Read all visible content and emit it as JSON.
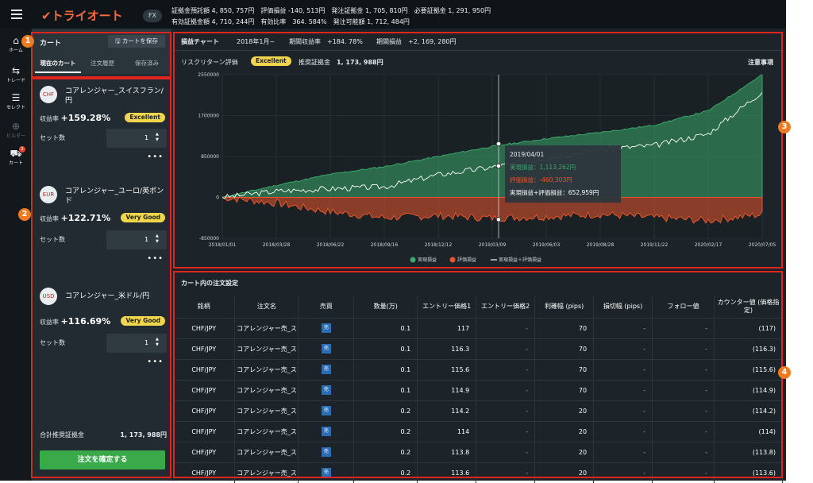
{
  "header": {
    "logo": "トライオート",
    "fx": "FX",
    "line1": "証拠金預託額 4, 850, 757円　評価損益 -140, 513円　発注証拠金 1, 705, 810円　必要証拠金 1, 291, 950円",
    "line2": "有効証拠金額 4, 710, 244円　有効比率　364. 584%　発注可能額 1, 712, 484円"
  },
  "nav": [
    {
      "label": "ホーム",
      "icon": "⌂"
    },
    {
      "label": "トレード",
      "icon": "⇆"
    },
    {
      "label": "セレクト",
      "icon": "☰"
    },
    {
      "label": "ビルダー",
      "icon": "⊕"
    },
    {
      "label": "カート",
      "icon": "⛟",
      "badge": "3"
    }
  ],
  "cart": {
    "title": "カート",
    "save": "カートを保存",
    "tabs": [
      "現在のカート",
      "注文履歴",
      "保存済み"
    ],
    "items": [
      {
        "flag": "CHF",
        "name": "コアレンジャー_スイスフラン/円",
        "yield_label": "収益率",
        "yield": "+159.28%",
        "rating": "Excellent",
        "set_label": "セット数",
        "sets": "1"
      },
      {
        "flag": "EUR",
        "name": "コアレンジャー_ユーロ/英ポンド",
        "yield_label": "収益率",
        "yield": "+122.71%",
        "rating": "Very Good",
        "set_label": "セット数",
        "sets": "1"
      },
      {
        "flag": "USD",
        "name": "コアレンジャー_米ドル/円",
        "yield_label": "収益率",
        "yield": "+116.69%",
        "rating": "Very Good",
        "set_label": "セット数",
        "sets": "1"
      }
    ],
    "total_label": "合計推奨証拠金",
    "total_value": "1, 173, 988円",
    "confirm": "注文を確定する"
  },
  "chartpanel": {
    "tab": "損益チャート",
    "period": "2018年1月~",
    "return_label": "期間収益率",
    "return": "+184. 78%",
    "pl_label": "期間損益",
    "pl": "+2, 169, 280円",
    "risk_label": "リスクリターン評価",
    "risk": "Excellent",
    "margin_label": "推奨証拠金",
    "margin": "1, 173, 988円",
    "notice": "注意事項",
    "tooltip": {
      "date": "2019/04/01",
      "realized": "実現損益：1,113,262円",
      "unrealized": "評価損益：-460,303円",
      "total": "実現損益+評価損益：652,959円"
    }
  },
  "chart_data": {
    "type": "area",
    "x": [
      "2018/01/01",
      "2018/03/28",
      "2018/06/22",
      "2018/09/16",
      "2018/12/12",
      "2019/03/09",
      "2019/06/03",
      "2019/08/28",
      "2019/11/22",
      "2020/02/17",
      "2020/07/05"
    ],
    "ylim": [
      -850000,
      2550000
    ],
    "yticks": [
      2550000,
      1700000,
      850000,
      0,
      -850000
    ],
    "series": [
      {
        "name": "実現損益",
        "color": "#3aa86a",
        "values": [
          0,
          250000,
          480000,
          640000,
          850000,
          1060000,
          1220000,
          1350000,
          1500000,
          1800000,
          2550000
        ]
      },
      {
        "name": "評価損益",
        "color": "#e8552c",
        "values": [
          0,
          -120000,
          -300000,
          -420000,
          -380000,
          -430000,
          -400000,
          -350000,
          -420000,
          -480000,
          -350000
        ]
      },
      {
        "name": "実現損益＋評価損益",
        "color": "#ffffff",
        "values": [
          0,
          130000,
          180000,
          220000,
          470000,
          630000,
          820000,
          1000000,
          1080000,
          1320000,
          2200000
        ]
      }
    ],
    "marker_x": "2019/04/01"
  },
  "orders": {
    "title": "カート内の注文設定",
    "headers": [
      "銘柄",
      "注文名",
      "売買",
      "数量(万)",
      "エントリー価格1",
      "エントリー価格2",
      "利確幅 (pips)",
      "損切幅 (pips)",
      "フォロー値",
      "カウンター値 (価格指定)"
    ],
    "rows": [
      [
        "CHF/JPY",
        "コアレンジャー売_ス",
        "売",
        "0.1",
        "117",
        "-",
        "70",
        "-",
        "-",
        "(117)"
      ],
      [
        "CHF/JPY",
        "コアレンジャー売_ス",
        "売",
        "0.1",
        "116.3",
        "-",
        "70",
        "-",
        "-",
        "(116.3)"
      ],
      [
        "CHF/JPY",
        "コアレンジャー売_ス",
        "売",
        "0.1",
        "115.6",
        "-",
        "70",
        "-",
        "-",
        "(115.6)"
      ],
      [
        "CHF/JPY",
        "コアレンジャー売_ス",
        "売",
        "0.1",
        "114.9",
        "-",
        "70",
        "-",
        "-",
        "(114.9)"
      ],
      [
        "CHF/JPY",
        "コアレンジャー売_ス",
        "売",
        "0.2",
        "114.2",
        "-",
        "20",
        "-",
        "-",
        "(114.2)"
      ],
      [
        "CHF/JPY",
        "コアレンジャー売_ス",
        "売",
        "0.2",
        "114",
        "-",
        "20",
        "-",
        "-",
        "(114)"
      ],
      [
        "CHF/JPY",
        "コアレンジャー売_ス",
        "売",
        "0.2",
        "113.8",
        "-",
        "20",
        "-",
        "-",
        "(113.8)"
      ],
      [
        "CHF/JPY",
        "コアレンジャー売_ス",
        "売",
        "0.2",
        "113.6",
        "-",
        "20",
        "-",
        "-",
        "(113.6)"
      ]
    ]
  },
  "callouts": [
    "1",
    "2",
    "3",
    "4"
  ]
}
